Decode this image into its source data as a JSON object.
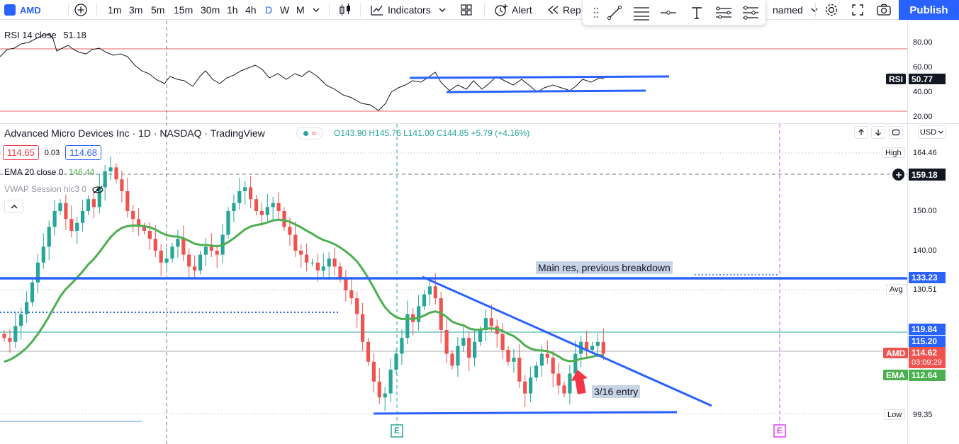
{
  "toolbar": {
    "symbol": "AMD",
    "intervals": [
      "1m",
      "3m",
      "5m",
      "15m",
      "30m",
      "1h",
      "4h",
      "D",
      "W",
      "M"
    ],
    "active_interval": "D",
    "indicators_label": "Indicators",
    "alert_label": "Alert",
    "replay_label": "Rep",
    "layout_label": "named",
    "publish_label": "Publish"
  },
  "rsi_pane": {
    "legend": "RSI 14 close",
    "legend_value": "51.18",
    "axis_labels": [
      "80.00",
      "60.00",
      "40.00",
      "20.00"
    ],
    "tag_label": "RSI",
    "tag_value": "50.77"
  },
  "main_pane": {
    "title": "Advanced Micro Devices Inc · 1D · NASDAQ · TradingView",
    "ohlc": "O143.90 H145.76 L141.00 C144.85 +5.79 (+4.16%)",
    "bid": "114.65",
    "spread": "0.03",
    "ask": "114.68",
    "ema_legend": "EMA 20 close 0",
    "ema_value": "146.44",
    "vwap_legend": "VWAP Session hlc3 0",
    "currency": "USD",
    "axis_labels": [
      "150.00",
      "140.00"
    ],
    "high_label": "High",
    "high_value": "164.46",
    "crosshair_value": "159.18",
    "res_value": "133.23",
    "avg_label": "Avg",
    "avg_value": "130.51",
    "level_1": "119.84",
    "level_2": "115.20",
    "price_tag_label": "AMD",
    "price_tag_value": "114.62",
    "countdown": "03:09:29",
    "ema_tag_label": "EMA",
    "ema_tag_value": "112.64",
    "low_label": "Low",
    "low_value": "99.35",
    "annotation_resistance": "Main res, previous breakdown",
    "annotation_entry": "3/16 entry",
    "earnings_marker": "E",
    "colors": {
      "up": "#26a69a",
      "down": "#ef5350",
      "ema": "#4caf50",
      "drawing": "#2962ff"
    }
  }
}
